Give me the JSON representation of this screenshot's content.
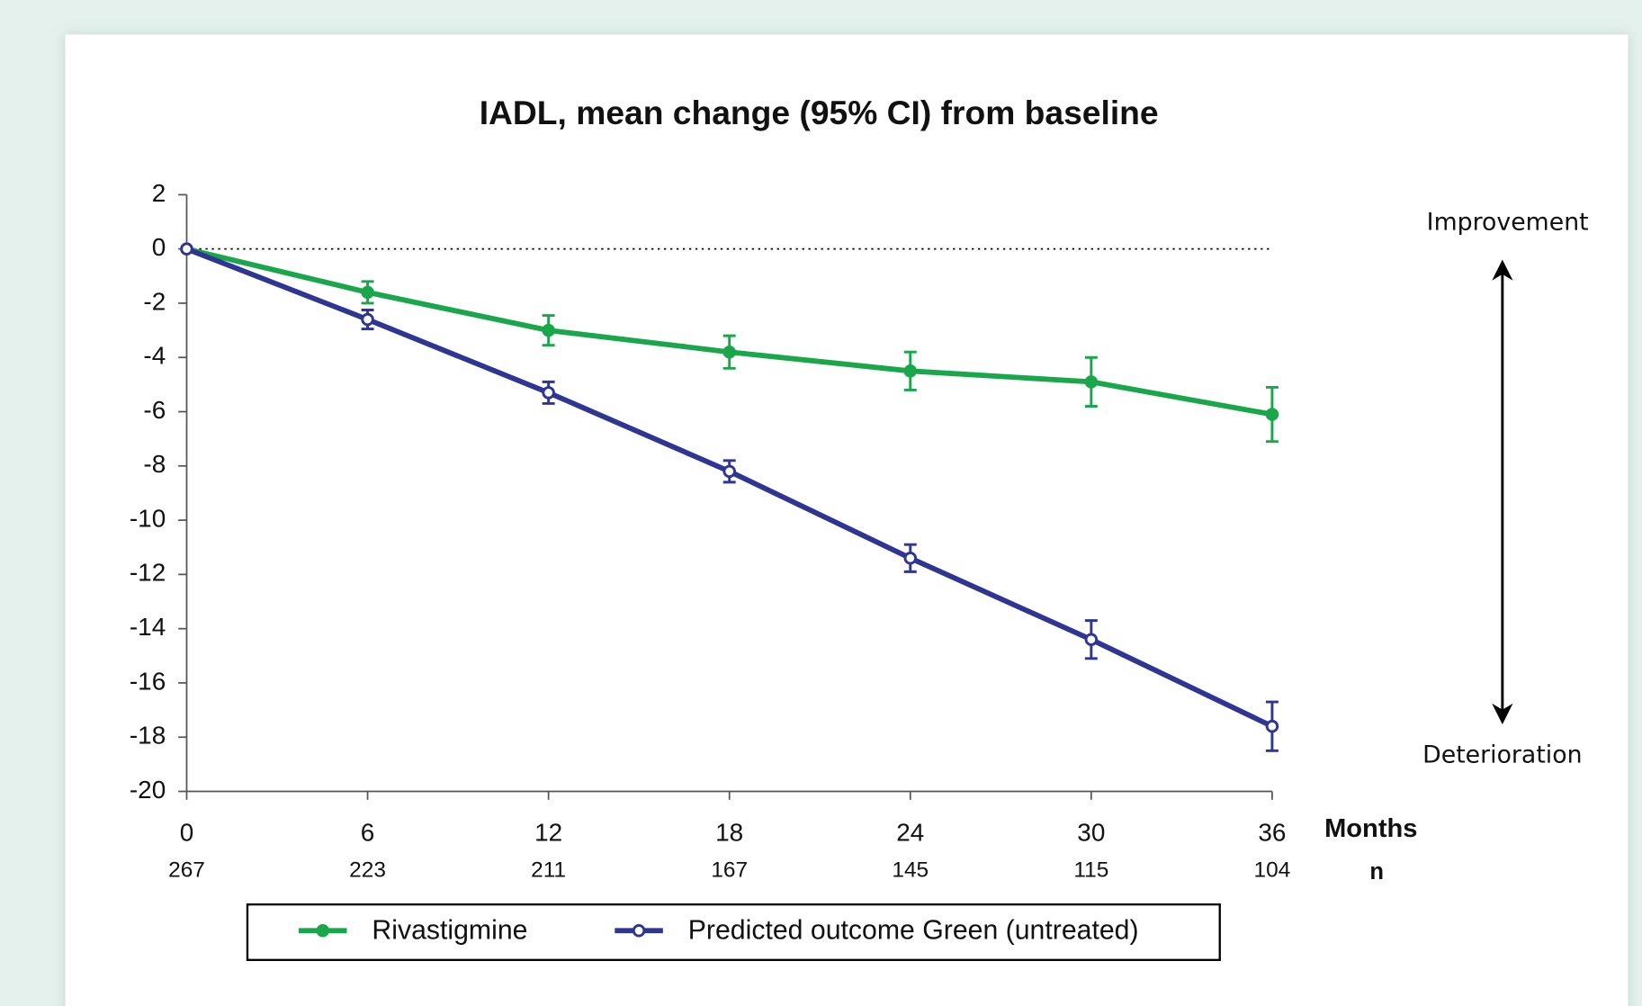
{
  "chart_data": {
    "type": "line",
    "title": "IADL, mean change (95% CI) from baseline",
    "x": [
      0,
      6,
      12,
      18,
      24,
      30,
      36
    ],
    "xlim": [
      0,
      36
    ],
    "xticks": [
      0,
      6,
      12,
      18,
      24,
      30,
      36
    ],
    "xlabel": "Months",
    "n_label": "n",
    "n": [
      267,
      223,
      211,
      167,
      145,
      115,
      104
    ],
    "ylim": [
      -20,
      2
    ],
    "yticks": [
      2,
      0,
      -2,
      -4,
      -6,
      -8,
      -10,
      -12,
      -14,
      -16,
      -18,
      -20
    ],
    "series": [
      {
        "name": "Rivastigmine",
        "color": "#1aa64a",
        "marker": "filled",
        "values": [
          0,
          -1.6,
          -3.0,
          -3.8,
          -4.5,
          -4.9,
          -6.1
        ],
        "errors": [
          null,
          0.4,
          0.55,
          0.6,
          0.7,
          0.9,
          1.0
        ]
      },
      {
        "name": "Predicted outcome Green (untreated)",
        "color": "#2e3592",
        "marker": "open",
        "values": [
          0,
          -2.6,
          -5.3,
          -8.2,
          -11.4,
          -14.4,
          -17.6
        ],
        "errors": [
          null,
          0.35,
          0.4,
          0.4,
          0.5,
          0.7,
          0.9
        ]
      }
    ],
    "annotations": [
      "Improvement",
      "Deterioration"
    ]
  }
}
